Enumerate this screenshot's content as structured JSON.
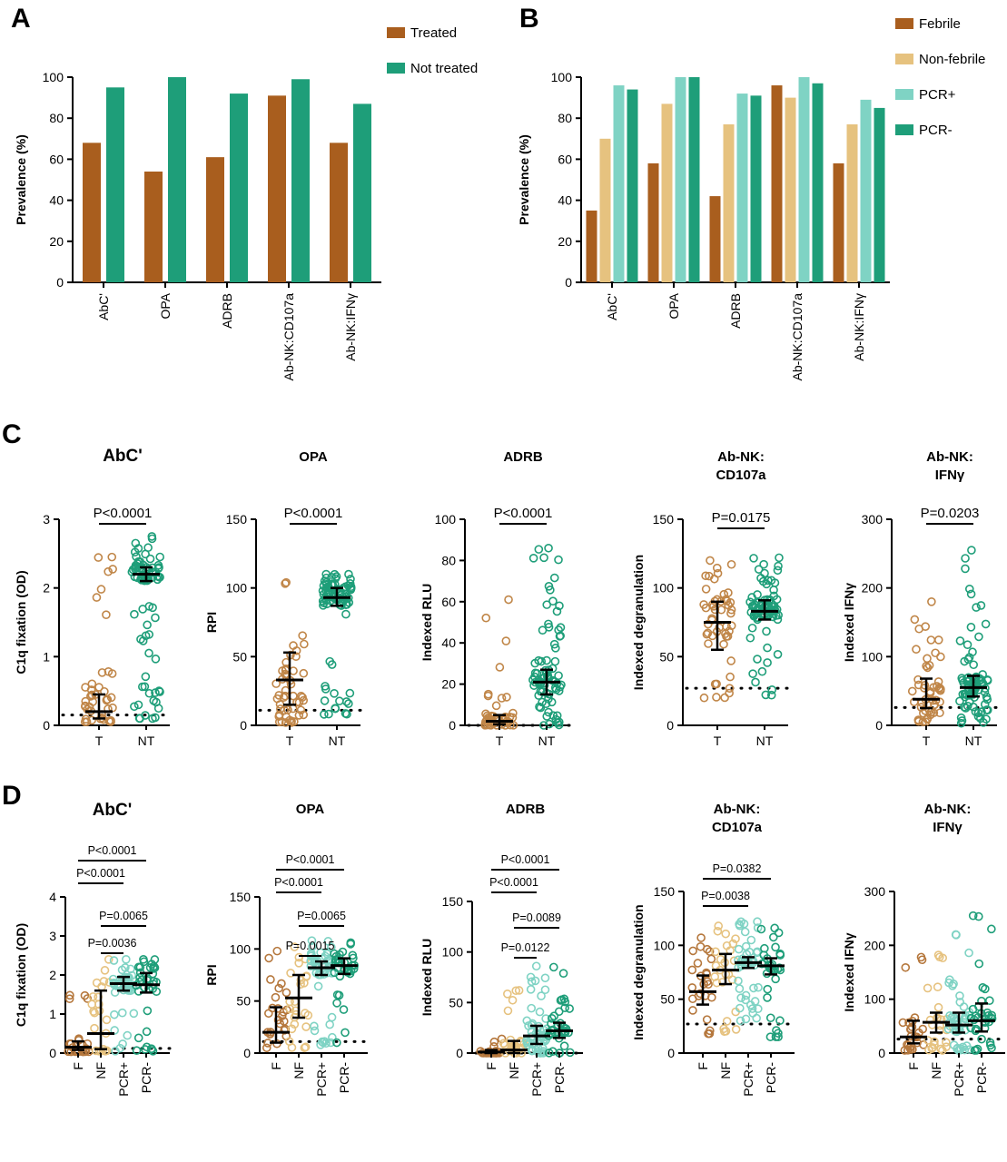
{
  "panels": {
    "A": "A",
    "B": "B",
    "C": "C",
    "D": "D"
  },
  "colors": {
    "treated": "#A95E1E",
    "not_treated": "#1E9E79",
    "febrile": "#A95E1E",
    "non_febrile": "#E6C27F",
    "pcr_pos": "#7FD3C4",
    "pcr_neg": "#1E9E79",
    "c_treated_pts": "#C08648",
    "c_not_treated_pts": "#1E9E79",
    "d_f": "#B5773C",
    "d_nf": "#E6C27F",
    "d_pcrpos": "#7FD3C4",
    "d_pcrneg": "#1E9E79"
  },
  "chart_data": [
    {
      "id": "A",
      "type": "bar",
      "categories": [
        "AbC'",
        "OPA",
        "ADRB",
        "Ab-NK:CD107a",
        "Ab-NK:IFNγ"
      ],
      "ylabel": "Prevalence (%)",
      "ylim": [
        0,
        100
      ],
      "yticks": [
        0,
        20,
        40,
        60,
        80,
        100
      ],
      "legend": "top-right",
      "series": [
        {
          "name": "Treated",
          "color": "#A95E1E",
          "values": [
            68,
            54,
            61,
            91,
            68
          ]
        },
        {
          "name": "Not treated",
          "color": "#1E9E79",
          "values": [
            95,
            100,
            92,
            99,
            87
          ]
        }
      ]
    },
    {
      "id": "B",
      "type": "bar",
      "categories": [
        "AbC'",
        "OPA",
        "ADRB",
        "Ab-NK:CD107a",
        "Ab-NK:IFNγ"
      ],
      "ylabel": "Prevalence (%)",
      "ylim": [
        0,
        100
      ],
      "yticks": [
        0,
        20,
        40,
        60,
        80,
        100
      ],
      "legend": "right",
      "series": [
        {
          "name": "Febrile",
          "color": "#A95E1E",
          "values": [
            35,
            58,
            42,
            96,
            58
          ]
        },
        {
          "name": "Non-febrile",
          "color": "#E6C27F",
          "values": [
            70,
            87,
            77,
            90,
            77
          ]
        },
        {
          "name": "PCR+",
          "color": "#7FD3C4",
          "values": [
            96,
            100,
            92,
            100,
            89
          ]
        },
        {
          "name": "PCR-",
          "color": "#1E9E79",
          "values": [
            94,
            100,
            91,
            97,
            85
          ]
        }
      ]
    },
    {
      "id": "C1",
      "type": "scatter",
      "title": "AbC'",
      "ylabel": "C1q fixation (OD)",
      "ylim": [
        0,
        3
      ],
      "yticks": [
        0,
        1,
        2,
        3
      ],
      "threshold": 0.15,
      "groups": [
        {
          "label": "T",
          "n": 45,
          "median": 0.2,
          "q1": 0.1,
          "q3": 0.45,
          "min": 0.05,
          "max": 2.45
        },
        {
          "label": "NT",
          "n": 80,
          "median": 2.2,
          "q1": 2.1,
          "q3": 2.3,
          "min": 0.1,
          "max": 2.75
        }
      ],
      "comparisons": [
        {
          "a": 0,
          "b": 1,
          "p": "P<0.0001"
        }
      ]
    },
    {
      "id": "C2",
      "type": "scatter",
      "title": "OPA",
      "ylabel": "RPI",
      "ylim": [
        0,
        150
      ],
      "yticks": [
        0,
        50,
        100,
        150
      ],
      "threshold": 11,
      "groups": [
        {
          "label": "T",
          "n": 50,
          "median": 33,
          "q1": 15,
          "q3": 53,
          "min": 2,
          "max": 104
        },
        {
          "label": "NT",
          "n": 80,
          "median": 93,
          "q1": 87,
          "q3": 100,
          "min": 8,
          "max": 110
        }
      ],
      "comparisons": [
        {
          "a": 0,
          "b": 1,
          "p": "P<0.0001"
        }
      ]
    },
    {
      "id": "C3",
      "type": "scatter",
      "title": "ADRB",
      "ylabel": "Indexed RLU",
      "ylim": [
        0,
        100
      ],
      "yticks": [
        0,
        20,
        40,
        60,
        80,
        100
      ],
      "threshold": 0,
      "groups": [
        {
          "label": "T",
          "n": 45,
          "median": 2,
          "q1": 0.5,
          "q3": 5,
          "min": 0,
          "max": 61
        },
        {
          "label": "NT",
          "n": 80,
          "median": 21,
          "q1": 15,
          "q3": 27,
          "min": 0,
          "max": 86
        }
      ],
      "comparisons": [
        {
          "a": 0,
          "b": 1,
          "p": "P<0.0001"
        }
      ]
    },
    {
      "id": "C4",
      "type": "scatter",
      "title_lines": [
        "Ab-NK:",
        "CD107a"
      ],
      "ylabel": "Indexed degranulation",
      "ylim": [
        0,
        150
      ],
      "yticks": [
        0,
        50,
        100,
        150
      ],
      "threshold": 27,
      "groups": [
        {
          "label": "T",
          "n": 50,
          "median": 75,
          "q1": 55,
          "q3": 90,
          "min": 20,
          "max": 120
        },
        {
          "label": "NT",
          "n": 80,
          "median": 83,
          "q1": 77,
          "q3": 91,
          "min": 22,
          "max": 122
        }
      ],
      "comparisons": [
        {
          "a": 0,
          "b": 1,
          "p": "P=0.0175"
        }
      ]
    },
    {
      "id": "C5",
      "type": "scatter",
      "title_lines": [
        "Ab-NK:",
        "IFNγ"
      ],
      "ylabel": "Indexed IFNγ",
      "ylim": [
        0,
        300
      ],
      "yticks": [
        0,
        100,
        200,
        300
      ],
      "threshold": 26,
      "groups": [
        {
          "label": "T",
          "n": 50,
          "median": 38,
          "q1": 25,
          "q3": 68,
          "min": 5,
          "max": 180
        },
        {
          "label": "NT",
          "n": 80,
          "median": 55,
          "q1": 42,
          "q3": 72,
          "min": 3,
          "max": 255
        }
      ],
      "comparisons": [
        {
          "a": 0,
          "b": 1,
          "p": "P=0.0203"
        }
      ]
    },
    {
      "id": "D1",
      "type": "scatter",
      "title": "AbC'",
      "ylabel": "C1q fixation (OD)",
      "ylim": [
        0,
        4
      ],
      "yticks": [
        0,
        1,
        2,
        3,
        4
      ],
      "threshold": 0.12,
      "groups": [
        {
          "label": "F",
          "n": 22,
          "median": 0.15,
          "q1": 0.08,
          "q3": 0.3,
          "min": 0.03,
          "max": 1.48
        },
        {
          "label": "NF",
          "n": 22,
          "median": 0.5,
          "q1": 0.1,
          "q3": 1.6,
          "min": 0.05,
          "max": 2.4
        },
        {
          "label": "PCR+",
          "n": 45,
          "median": 1.78,
          "q1": 1.6,
          "q3": 1.95,
          "min": 0.05,
          "max": 2.4
        },
        {
          "label": "PCR-",
          "n": 35,
          "median": 1.75,
          "q1": 1.55,
          "q3": 2.05,
          "min": 0.05,
          "max": 2.4
        }
      ],
      "comparisons": [
        {
          "a": 0,
          "b": 3,
          "p": "P<0.0001"
        },
        {
          "a": 0,
          "b": 2,
          "p": "P<0.0001"
        },
        {
          "a": 1,
          "b": 3,
          "p": "P=0.0065"
        },
        {
          "a": 1,
          "b": 2,
          "p": "P=0.0036"
        }
      ]
    },
    {
      "id": "D2",
      "type": "scatter",
      "title": "OPA",
      "ylabel": "RPI",
      "ylim": [
        0,
        150
      ],
      "yticks": [
        0,
        50,
        100,
        150
      ],
      "threshold": 11,
      "groups": [
        {
          "label": "F",
          "n": 25,
          "median": 20,
          "q1": 10,
          "q3": 44,
          "min": 5,
          "max": 98
        },
        {
          "label": "NF",
          "n": 25,
          "median": 53,
          "q1": 34,
          "q3": 75,
          "min": 5,
          "max": 102
        },
        {
          "label": "PCR+",
          "n": 50,
          "median": 82,
          "q1": 75,
          "q3": 88,
          "min": 8,
          "max": 108
        },
        {
          "label": "PCR-",
          "n": 35,
          "median": 84,
          "q1": 76,
          "q3": 91,
          "min": 10,
          "max": 106
        }
      ],
      "comparisons": [
        {
          "a": 0,
          "b": 3,
          "p": "P<0.0001"
        },
        {
          "a": 0,
          "b": 2,
          "p": "P<0.0001"
        },
        {
          "a": 1,
          "b": 3,
          "p": "P=0.0065"
        },
        {
          "a": 1,
          "b": 2,
          "p": "P=0.0015"
        }
      ]
    },
    {
      "id": "D3",
      "type": "scatter",
      "title": "ADRB",
      "ylabel": "Indexed RLU",
      "ylim": [
        0,
        150
      ],
      "yticks": [
        0,
        50,
        100,
        150
      ],
      "threshold": 0,
      "groups": [
        {
          "label": "F",
          "n": 20,
          "median": 1,
          "q1": 0,
          "q3": 3,
          "min": 0,
          "max": 14
        },
        {
          "label": "NF",
          "n": 25,
          "median": 3,
          "q1": 0,
          "q3": 12,
          "min": 0,
          "max": 62
        },
        {
          "label": "PCR+",
          "n": 50,
          "median": 17,
          "q1": 9,
          "q3": 27,
          "min": 0,
          "max": 86
        },
        {
          "label": "PCR-",
          "n": 35,
          "median": 22,
          "q1": 15,
          "q3": 30,
          "min": 0,
          "max": 85
        }
      ],
      "comparisons": [
        {
          "a": 0,
          "b": 3,
          "p": "P<0.0001"
        },
        {
          "a": 0,
          "b": 2,
          "p": "P<0.0001"
        },
        {
          "a": 1,
          "b": 3,
          "p": "P=0.0089"
        },
        {
          "a": 1,
          "b": 2,
          "p": "P=0.0122"
        }
      ]
    },
    {
      "id": "D4",
      "type": "scatter",
      "title_lines": [
        "Ab-NK:",
        "CD107a"
      ],
      "ylabel": "Indexed degranulation",
      "ylim": [
        0,
        150
      ],
      "yticks": [
        0,
        50,
        100,
        150
      ],
      "threshold": 27,
      "groups": [
        {
          "label": "F",
          "n": 25,
          "median": 57,
          "q1": 45,
          "q3": 72,
          "min": 18,
          "max": 107
        },
        {
          "label": "NF",
          "n": 25,
          "median": 77,
          "q1": 64,
          "q3": 92,
          "min": 20,
          "max": 118
        },
        {
          "label": "PCR+",
          "n": 45,
          "median": 84,
          "q1": 79,
          "q3": 89,
          "min": 30,
          "max": 122
        },
        {
          "label": "PCR-",
          "n": 32,
          "median": 81,
          "q1": 73,
          "q3": 88,
          "min": 15,
          "max": 116
        }
      ],
      "comparisons": [
        {
          "a": 0,
          "b": 3,
          "p": "P=0.0382"
        },
        {
          "a": 0,
          "b": 2,
          "p": "P=0.0038"
        }
      ]
    },
    {
      "id": "D5",
      "type": "scatter",
      "title_lines": [
        "Ab-NK:",
        "IFNγ"
      ],
      "ylabel": "Indexed IFNγ",
      "ylim": [
        0,
        300
      ],
      "yticks": [
        0,
        100,
        200,
        300
      ],
      "threshold": 26,
      "groups": [
        {
          "label": "F",
          "n": 25,
          "median": 30,
          "q1": 18,
          "q3": 60,
          "min": 5,
          "max": 178
        },
        {
          "label": "NF",
          "n": 25,
          "median": 57,
          "q1": 38,
          "q3": 75,
          "min": 5,
          "max": 182
        },
        {
          "label": "PCR+",
          "n": 45,
          "median": 52,
          "q1": 38,
          "q3": 75,
          "min": 5,
          "max": 220
        },
        {
          "label": "PCR-",
          "n": 35,
          "median": 60,
          "q1": 40,
          "q3": 92,
          "min": 5,
          "max": 255
        }
      ],
      "comparisons": []
    }
  ]
}
